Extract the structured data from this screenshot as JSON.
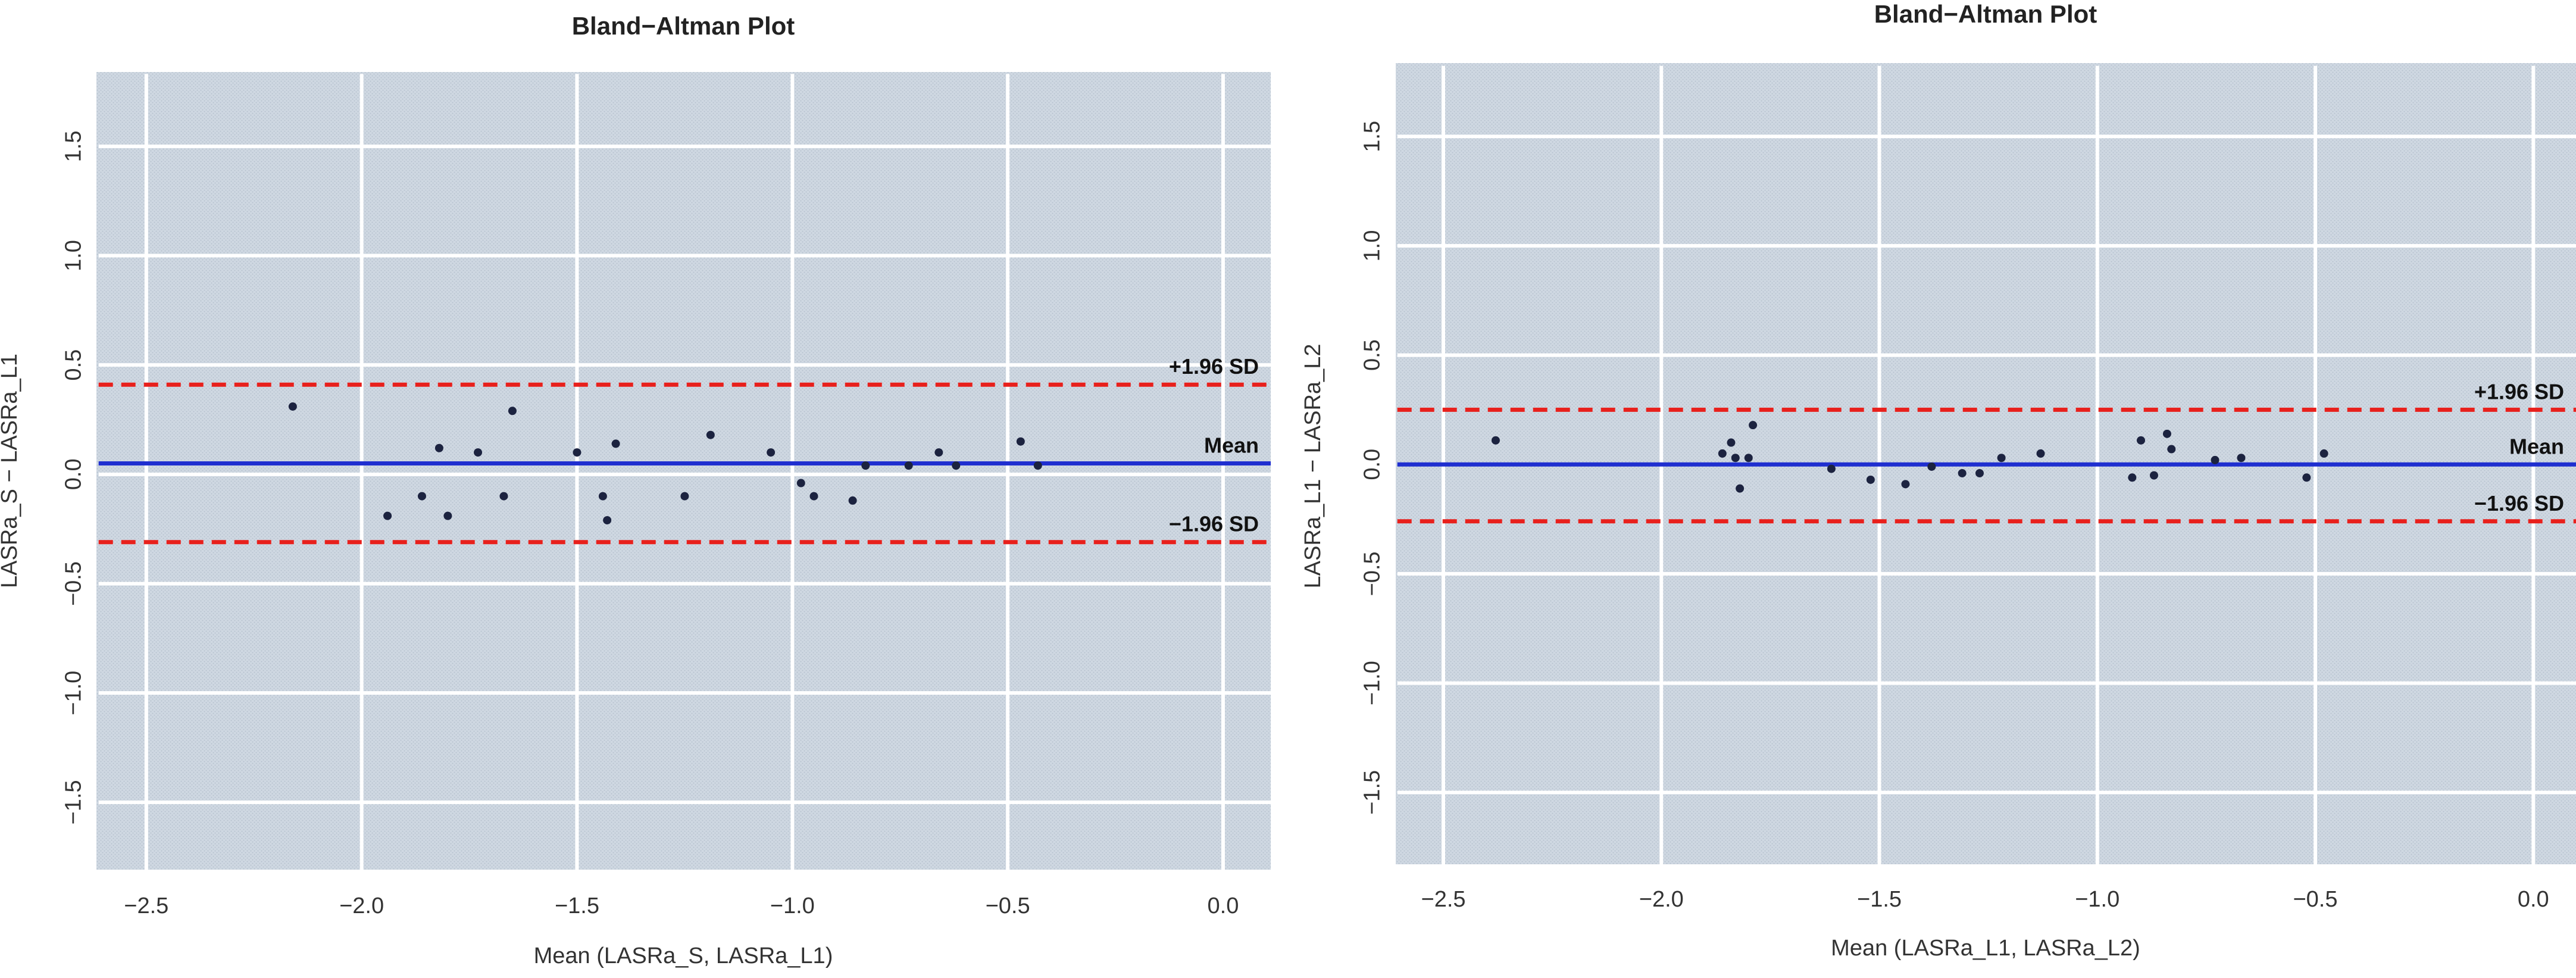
{
  "chart_data": [
    {
      "type": "scatter",
      "title": "Bland−Altman Plot",
      "xlabel": "Mean (LASRa_S, LASRa_L1)",
      "ylabel": "LASRa_S − LASRa_L1",
      "xlim": [
        -2.6,
        0.1
      ],
      "ylim": [
        -1.85,
        1.85
      ],
      "xticks": [
        -2.5,
        -2.0,
        -1.5,
        -1.0,
        -0.5,
        0.0
      ],
      "xtick_labels": [
        "−2.5",
        "−2.0",
        "−1.5",
        "−1.0",
        "−0.5",
        "0.0"
      ],
      "yticks": [
        -1.5,
        -1.0,
        -0.5,
        0.0,
        0.5,
        1.0,
        1.5
      ],
      "ytick_labels": [
        "−1.5",
        "−1.0",
        "−0.5",
        "0.0",
        "0.5",
        "1.0",
        "1.5"
      ],
      "grid": true,
      "lines": {
        "upper": {
          "y": 0.41,
          "label": "+1.96 SD",
          "color": "#e8201c",
          "style": "dashed"
        },
        "mean": {
          "y": 0.05,
          "label": "Mean",
          "color": "#1f2fd0",
          "style": "solid"
        },
        "lower": {
          "y": -0.31,
          "label": "−1.96 SD",
          "color": "#e8201c",
          "style": "dashed"
        }
      },
      "points": [
        {
          "x": -2.16,
          "y": 0.31
        },
        {
          "x": -1.94,
          "y": -0.19
        },
        {
          "x": -1.86,
          "y": -0.1
        },
        {
          "x": -1.82,
          "y": 0.12
        },
        {
          "x": -1.8,
          "y": -0.19
        },
        {
          "x": -1.73,
          "y": 0.1
        },
        {
          "x": -1.67,
          "y": -0.1
        },
        {
          "x": -1.65,
          "y": 0.29
        },
        {
          "x": -1.5,
          "y": 0.1
        },
        {
          "x": -1.44,
          "y": -0.1
        },
        {
          "x": -1.43,
          "y": -0.21
        },
        {
          "x": -1.41,
          "y": 0.14
        },
        {
          "x": -1.25,
          "y": -0.1
        },
        {
          "x": -1.19,
          "y": 0.18
        },
        {
          "x": -1.05,
          "y": 0.1
        },
        {
          "x": -0.98,
          "y": -0.04
        },
        {
          "x": -0.95,
          "y": -0.1
        },
        {
          "x": -0.86,
          "y": -0.12
        },
        {
          "x": -0.83,
          "y": 0.04
        },
        {
          "x": -0.73,
          "y": 0.04
        },
        {
          "x": -0.66,
          "y": 0.1
        },
        {
          "x": -0.62,
          "y": 0.04
        },
        {
          "x": -0.47,
          "y": 0.15
        },
        {
          "x": -0.43,
          "y": 0.04
        }
      ],
      "colors": {
        "background": "#ccd5e0",
        "grid": "#ffffff",
        "point": "#1c2340"
      }
    },
    {
      "type": "scatter",
      "title": "Bland−Altman Plot",
      "xlabel": "Mean (LASRa_L1, LASRa_L2)",
      "ylabel": "LASRa_L1 − LASRa_L2",
      "xlim": [
        -2.6,
        0.1
      ],
      "ylim": [
        -1.85,
        1.85
      ],
      "xticks": [
        -2.5,
        -2.0,
        -1.5,
        -1.0,
        -0.5,
        0.0
      ],
      "xtick_labels": [
        "−2.5",
        "−2.0",
        "−1.5",
        "−1.0",
        "−0.5",
        "0.0"
      ],
      "yticks": [
        -1.5,
        -1.0,
        -0.5,
        0.0,
        0.5,
        1.0,
        1.5
      ],
      "ytick_labels": [
        "−1.5",
        "−1.0",
        "−0.5",
        "0.0",
        "0.5",
        "1.0",
        "1.5"
      ],
      "grid": true,
      "lines": {
        "upper": {
          "y": 0.25,
          "label": "+1.96 SD",
          "color": "#e8201c",
          "style": "dashed"
        },
        "mean": {
          "y": 0.0,
          "label": "Mean",
          "color": "#1f2fd0",
          "style": "solid"
        },
        "lower": {
          "y": -0.26,
          "label": "−1.96 SD",
          "color": "#e8201c",
          "style": "dashed"
        }
      },
      "points": [
        {
          "x": -2.38,
          "y": 0.11
        },
        {
          "x": -1.86,
          "y": 0.05
        },
        {
          "x": -1.84,
          "y": 0.1
        },
        {
          "x": -1.83,
          "y": 0.03
        },
        {
          "x": -1.82,
          "y": -0.11
        },
        {
          "x": -1.8,
          "y": 0.03
        },
        {
          "x": -1.79,
          "y": 0.18
        },
        {
          "x": -1.61,
          "y": -0.02
        },
        {
          "x": -1.52,
          "y": -0.07
        },
        {
          "x": -1.44,
          "y": -0.09
        },
        {
          "x": -1.38,
          "y": -0.01
        },
        {
          "x": -1.31,
          "y": -0.04
        },
        {
          "x": -1.27,
          "y": -0.04
        },
        {
          "x": -1.22,
          "y": 0.03
        },
        {
          "x": -1.13,
          "y": 0.05
        },
        {
          "x": -0.92,
          "y": -0.06
        },
        {
          "x": -0.9,
          "y": 0.11
        },
        {
          "x": -0.87,
          "y": -0.05
        },
        {
          "x": -0.84,
          "y": 0.14
        },
        {
          "x": -0.83,
          "y": 0.07
        },
        {
          "x": -0.73,
          "y": 0.02
        },
        {
          "x": -0.67,
          "y": 0.03
        },
        {
          "x": -0.52,
          "y": -0.06
        },
        {
          "x": -0.48,
          "y": 0.05
        }
      ],
      "colors": {
        "background": "#ccd5e0",
        "grid": "#ffffff",
        "point": "#1c2340"
      }
    }
  ]
}
